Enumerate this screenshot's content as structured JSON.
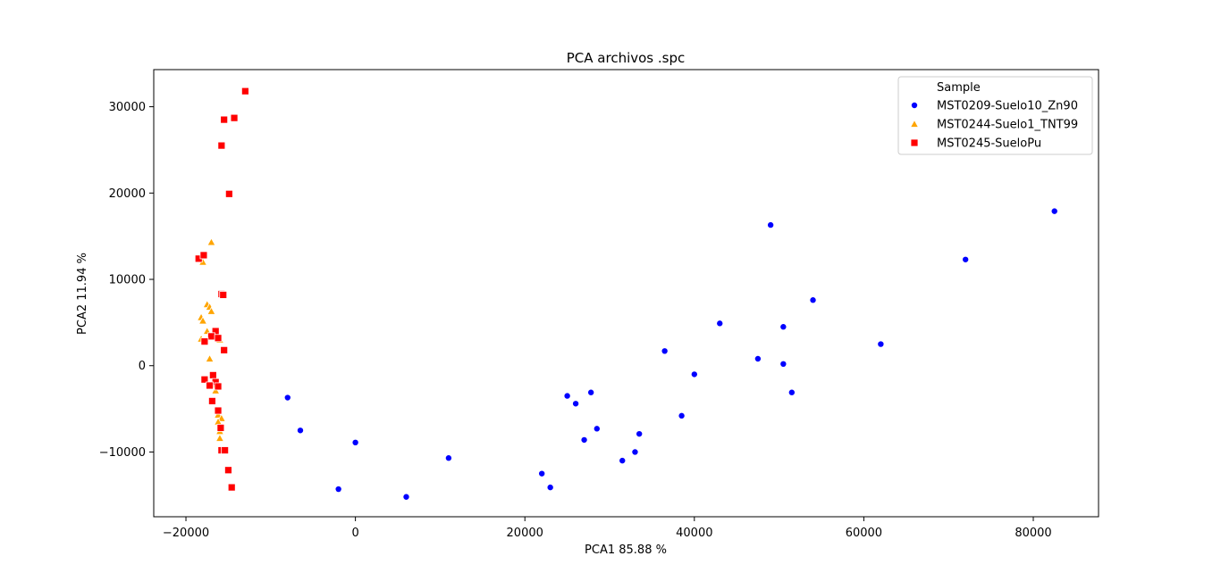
{
  "chart_data": {
    "type": "scatter",
    "title": "PCA archivos .spc",
    "xlabel": "PCA1 85.88 %",
    "ylabel": "PCA2 11.94 %",
    "xlim": [
      -23800,
      87700
    ],
    "ylim": [
      -17500,
      34300
    ],
    "xticks": [
      -20000,
      0,
      20000,
      40000,
      60000,
      80000
    ],
    "yticks": [
      -10000,
      0,
      10000,
      20000,
      30000
    ],
    "xtick_labels": [
      "−20000",
      "0",
      "20000",
      "40000",
      "60000",
      "80000"
    ],
    "ytick_labels": [
      "−10000",
      "0",
      "10000",
      "20000",
      "30000"
    ],
    "grid": false,
    "legend_title": "Sample",
    "legend_position": "top-right",
    "series": [
      {
        "name": "MST0209-Suelo10_Zn90",
        "marker": "circle",
        "color": "#0000ff",
        "x": [
          -8000,
          -6500,
          -2000,
          0,
          6000,
          11000,
          22000,
          23000,
          25000,
          26000,
          27000,
          27800,
          28500,
          31500,
          33000,
          33500,
          36500,
          38500,
          40000,
          43000,
          47500,
          49000,
          50500,
          50500,
          51500,
          54000,
          62000,
          72000,
          82500
        ],
        "y": [
          -3700,
          -7500,
          -14300,
          -8900,
          -15200,
          -10700,
          -12500,
          -14100,
          -3500,
          -4400,
          -8600,
          -3100,
          -7300,
          -11000,
          -10000,
          -7900,
          1700,
          -5800,
          -1000,
          4900,
          800,
          16300,
          4500,
          200,
          -3100,
          7600,
          2500,
          12300,
          17900
        ]
      },
      {
        "name": "MST0244-Suelo1_TNT99",
        "marker": "triangle",
        "color": "#ffa500",
        "x": [
          -17000,
          -18000,
          -17500,
          -17200,
          -17000,
          -18200,
          -18000,
          -17500,
          -16700,
          -16500,
          -18200,
          -17200,
          -16000,
          -16500,
          -16200,
          -15800,
          -16200,
          -16000,
          -17000,
          -16000
        ],
        "y": [
          14300,
          12000,
          7100,
          6800,
          6300,
          5600,
          5200,
          4000,
          3700,
          3300,
          3100,
          800,
          3000,
          -2900,
          -5700,
          -6100,
          -6500,
          -8400,
          -2200,
          -7600
        ]
      },
      {
        "name": "MST0245-SueloPu",
        "marker": "square",
        "color": "#ff0000",
        "x": [
          -13000,
          -15500,
          -14300,
          -15800,
          -14900,
          -18500,
          -17900,
          -15800,
          -15600,
          -16500,
          -17000,
          -16200,
          -17800,
          -15500,
          -16800,
          -17800,
          -16500,
          -17200,
          -16200,
          -16900,
          -16200,
          -15900,
          -15800,
          -15400,
          -15000,
          -14600
        ],
        "y": [
          31800,
          28500,
          28700,
          25500,
          19900,
          12400,
          12800,
          8300,
          8200,
          4000,
          3400,
          3200,
          2800,
          1800,
          -1100,
          -1600,
          -1900,
          -2300,
          -2400,
          -4100,
          -5200,
          -7200,
          -9800,
          -9800,
          -12100,
          -14100
        ]
      }
    ]
  }
}
